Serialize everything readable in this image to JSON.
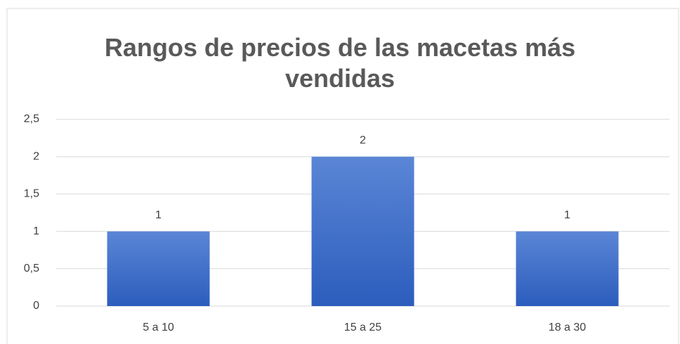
{
  "chart_data": {
    "type": "bar",
    "title": "Rangos de precios de las macetas más vendidas",
    "categories": [
      "5 a 10",
      "15 a 25",
      "18 a 30"
    ],
    "values": [
      1,
      2,
      1
    ],
    "color": "#3f6fcc",
    "ylim": [
      0,
      2.5
    ],
    "yticks": [
      0,
      {
        "value": 0.5,
        "label": "0,5"
      },
      1,
      {
        "value": 1.5,
        "label": "1,5"
      },
      2,
      {
        "value": 2.5,
        "label": "2,5"
      }
    ],
    "grid": true
  }
}
